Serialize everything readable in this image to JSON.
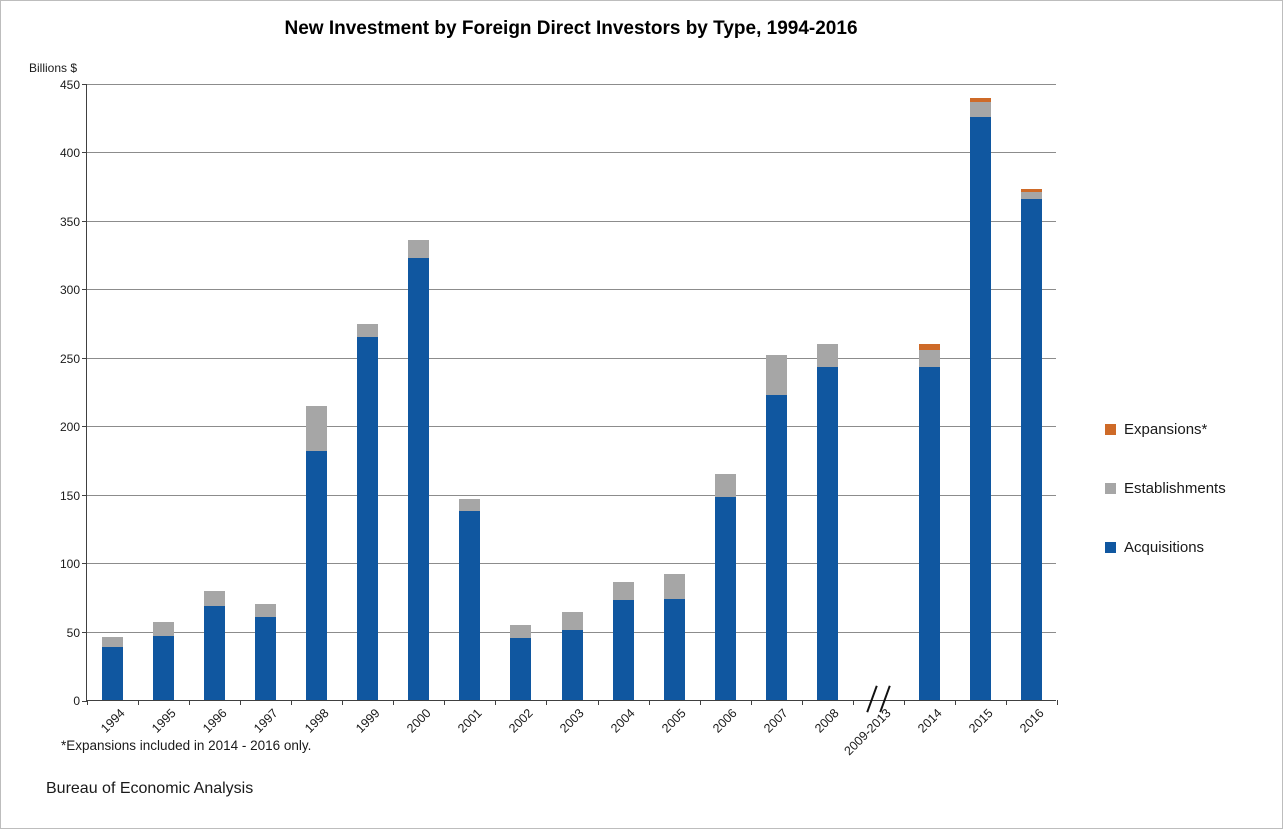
{
  "title": "New Investment by Foreign Direct Investors by Type, 1994-2016",
  "footnote": "*Expansions included in 2014 - 2016  only.",
  "source": "Bureau of Economic Analysis",
  "colors": {
    "acquisitions": "#1057A0",
    "establishments": "#A6A6A6",
    "expansions": "#CE6A28",
    "gridline": "#8C8C8C",
    "axis": "#404040"
  },
  "chart_data": {
    "type": "bar",
    "stacked": true,
    "title": "New Investment by Foreign Direct Investors by Type, 1994-2016",
    "xlabel": "",
    "ylabel": "Billions $",
    "ylim": [
      0,
      450
    ],
    "yticks": [
      0,
      50,
      100,
      150,
      200,
      250,
      300,
      350,
      400,
      450
    ],
    "grid": "horizontal",
    "legend_position": "right",
    "axis_break_category": "2009-2013",
    "categories": [
      "1994",
      "1995",
      "1996",
      "1997",
      "1998",
      "1999",
      "2000",
      "2001",
      "2002",
      "2003",
      "2004",
      "2005",
      "2006",
      "2007",
      "2008",
      "2009-2013",
      "2014",
      "2015",
      "2016"
    ],
    "series": [
      {
        "name": "Acquisitions",
        "color": "#1057A0",
        "values": [
          39,
          47,
          69,
          61,
          182,
          265,
          323,
          138,
          45,
          51,
          73,
          74,
          148,
          223,
          243,
          null,
          243,
          426,
          366
        ]
      },
      {
        "name": "Establishments",
        "color": "#A6A6A6",
        "values": [
          7,
          10,
          11,
          9,
          33,
          10,
          13,
          9,
          10,
          13,
          13,
          18,
          17,
          29,
          17,
          null,
          13,
          11,
          5
        ]
      },
      {
        "name": "Expansions*",
        "color": "#CE6A28",
        "values": [
          0,
          0,
          0,
          0,
          0,
          0,
          0,
          0,
          0,
          0,
          0,
          0,
          0,
          0,
          0,
          null,
          4,
          3,
          2.5
        ]
      }
    ],
    "legend": [
      {
        "label": "Expansions*",
        "color": "#CE6A28"
      },
      {
        "label": "Establishments",
        "color": "#A6A6A6"
      },
      {
        "label": "Acquisitions",
        "color": "#1057A0"
      }
    ]
  }
}
